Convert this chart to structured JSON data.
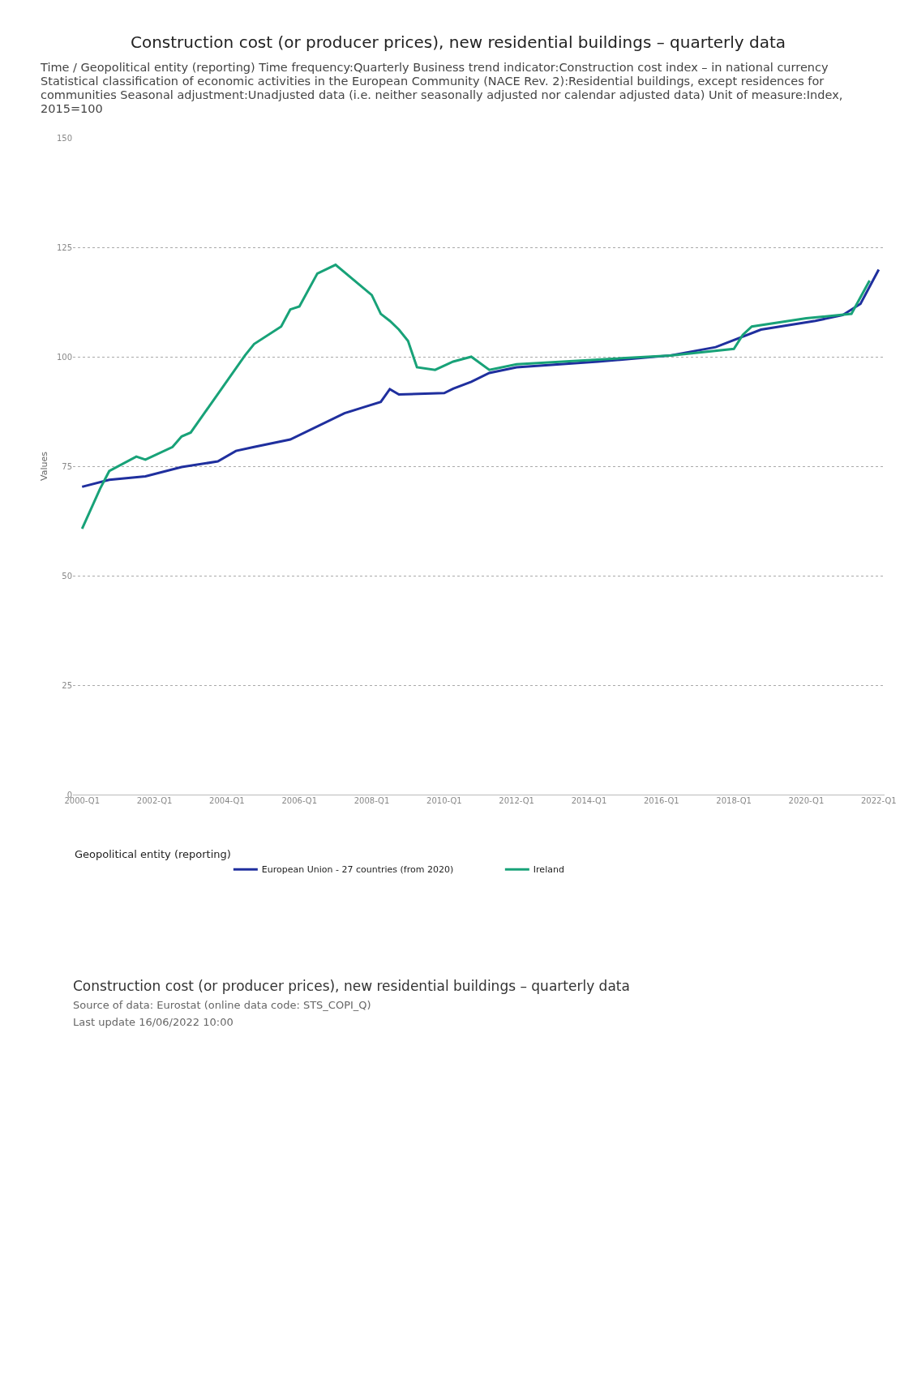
{
  "chart_data": {
    "type": "line",
    "title": "Construction cost (or producer prices), new residential buildings – quarterly data",
    "subtitle": "Time / Geopolitical entity (reporting)  Time frequency:Quarterly  Business trend indicator:Construction cost index – in national currency  Statistical classification of economic activities in the European Community (NACE Rev. 2):Residential buildings, except residences for communities  Seasonal adjustment:Unadjusted data (i.e. neither seasonally adjusted nor calendar adjusted data)  Unit of measure:Index, 2015=100",
    "ylabel": "Values",
    "legend_title": "Geopolitical entity (reporting)",
    "series": [
      {
        "name": "European Union - 27 countries (from 2020)",
        "color": "#1f2f9e",
        "x": [
          "2000-01",
          "2000-10",
          "2001-10",
          "2002-10",
          "2003-10",
          "2004-04",
          "2004-10",
          "2005-10",
          "2007-04",
          "2007-10",
          "2008-04",
          "2008-07",
          "2008-10",
          "2010-01",
          "2010-04",
          "2010-10",
          "2011-04",
          "2012-01",
          "2014-04",
          "2016-04",
          "2017-07",
          "2018-10",
          "2020-04",
          "2021-01",
          "2021-07",
          "2022-01"
        ],
        "values": [
          70.3,
          71.9,
          72.7,
          74.8,
          76.1,
          78.5,
          79.4,
          81.1,
          87.1,
          88.4,
          89.7,
          92.6,
          91.4,
          91.7,
          92.7,
          94.3,
          96.3,
          97.6,
          98.9,
          100.3,
          102.2,
          106.2,
          108.2,
          109.5,
          112.1,
          119.9
        ]
      },
      {
        "name": "Ireland",
        "color": "#18a278",
        "x": [
          "2000-01",
          "2000-07",
          "2000-10",
          "2001-07",
          "2001-10",
          "2002-07",
          "2002-10",
          "2003-01",
          "2004-07",
          "2004-10",
          "2005-07",
          "2005-10",
          "2006-01",
          "2006-07",
          "2007-01",
          "2008-01",
          "2008-04",
          "2008-07",
          "2008-10",
          "2009-01",
          "2009-04",
          "2009-10",
          "2010-04",
          "2010-10",
          "2011-04",
          "2012-01",
          "2016-04",
          "2018-01",
          "2018-04",
          "2018-07",
          "2020-01",
          "2021-04",
          "2021-10"
        ],
        "values": [
          60.7,
          69.9,
          73.9,
          77.2,
          76.5,
          79.4,
          81.8,
          82.7,
          100.3,
          102.9,
          106.9,
          110.8,
          111.5,
          119.0,
          121.0,
          114.1,
          109.8,
          108.2,
          106.2,
          103.6,
          97.6,
          97.0,
          98.9,
          100.0,
          97.0,
          98.3,
          100.3,
          101.8,
          105.0,
          106.9,
          108.8,
          109.8,
          117.4
        ]
      }
    ],
    "xlim": [
      "1999-10",
      "2022-03"
    ],
    "xticks": [
      {
        "value": "2000-01",
        "label": "2000-Q1"
      },
      {
        "value": "2002-01",
        "label": "2002-Q1"
      },
      {
        "value": "2004-01",
        "label": "2004-Q1"
      },
      {
        "value": "2006-01",
        "label": "2006-Q1"
      },
      {
        "value": "2008-01",
        "label": "2008-Q1"
      },
      {
        "value": "2010-01",
        "label": "2010-Q1"
      },
      {
        "value": "2012-01",
        "label": "2012-Q1"
      },
      {
        "value": "2014-01",
        "label": "2014-Q1"
      },
      {
        "value": "2016-01",
        "label": "2016-Q1"
      },
      {
        "value": "2018-01",
        "label": "2018-Q1"
      },
      {
        "value": "2020-01",
        "label": "2020-Q1"
      },
      {
        "value": "2022-01",
        "label": "2022-Q1"
      }
    ],
    "ylim": [
      0,
      150
    ],
    "yticks": [
      0,
      25,
      50,
      75,
      100,
      125,
      150
    ],
    "grid": "y",
    "legend": "bottom left",
    "marker": "none",
    "line_style": "solid",
    "annotations": [
      "Construction cost (or producer prices), new residential buildings – quarterly data",
      "Source of data: Eurostat (online data code: STS_COPI_Q)",
      "Last update 16/06/2022 10:00"
    ]
  }
}
